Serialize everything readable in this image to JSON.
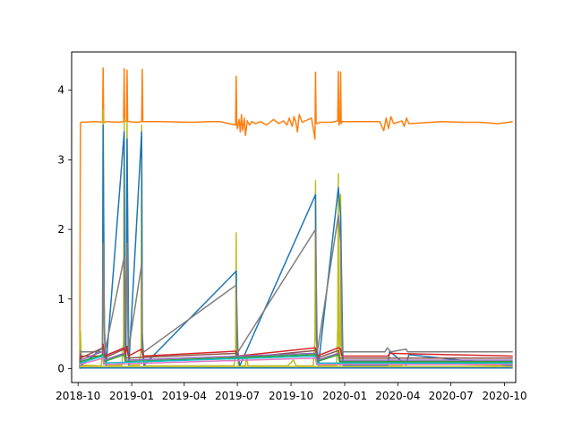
{
  "chart_data": {
    "type": "line",
    "title": "",
    "xlabel": "",
    "ylabel": "",
    "grid": false,
    "legend": "none",
    "x_range": [
      "2018-09-20",
      "2020-10-20"
    ],
    "ylim": [
      -0.2,
      4.55
    ],
    "x_ticks": [
      {
        "date": "2018-10-01",
        "label": "2018-10"
      },
      {
        "date": "2019-01-01",
        "label": "2019-01"
      },
      {
        "date": "2019-04-01",
        "label": "2019-04"
      },
      {
        "date": "2019-07-01",
        "label": "2019-07"
      },
      {
        "date": "2019-10-01",
        "label": "2019-10"
      },
      {
        "date": "2020-01-01",
        "label": "2020-01"
      },
      {
        "date": "2020-04-01",
        "label": "2020-04"
      },
      {
        "date": "2020-07-01",
        "label": "2020-07"
      },
      {
        "date": "2020-10-01",
        "label": "2020-10"
      }
    ],
    "y_ticks": [
      0,
      1,
      2,
      3,
      4
    ],
    "series": [
      {
        "color": "#ff7f0e",
        "x": [
          "2018-10-04",
          "2018-10-05",
          "2018-10-06",
          "2018-11-01",
          "2018-11-12",
          "2018-11-13",
          "2018-11-14",
          "2018-11-15",
          "2018-11-20",
          "2018-12-10",
          "2018-12-18",
          "2018-12-19",
          "2018-12-20",
          "2018-12-23",
          "2018-12-24",
          "2018-12-25",
          "2018-12-27",
          "2019-01-10",
          "2019-01-18",
          "2019-01-19",
          "2019-01-20",
          "2019-02-20",
          "2019-04-15",
          "2019-05-15",
          "2019-06-01",
          "2019-06-28",
          "2019-06-29",
          "2019-06-30",
          "2019-07-01",
          "2019-07-04",
          "2019-07-06",
          "2019-07-08",
          "2019-07-10",
          "2019-07-13",
          "2019-07-15",
          "2019-07-18",
          "2019-07-22",
          "2019-07-26",
          "2019-08-01",
          "2019-08-10",
          "2019-08-20",
          "2019-09-01",
          "2019-09-10",
          "2019-09-18",
          "2019-09-24",
          "2019-09-28",
          "2019-10-03",
          "2019-10-06",
          "2019-10-09",
          "2019-10-12",
          "2019-10-15",
          "2019-10-20",
          "2019-11-05",
          "2019-11-11",
          "2019-11-12",
          "2019-11-13",
          "2019-11-14",
          "2019-11-20",
          "2019-12-10",
          "2019-12-20",
          "2019-12-21",
          "2019-12-22",
          "2019-12-24",
          "2019-12-25",
          "2019-12-26",
          "2019-12-28",
          "2020-01-10",
          "2020-03-01",
          "2020-03-08",
          "2020-03-12",
          "2020-03-16",
          "2020-03-20",
          "2020-03-25",
          "2020-04-08",
          "2020-04-12",
          "2020-04-16",
          "2020-04-20",
          "2020-05-10",
          "2020-06-15",
          "2020-07-20",
          "2020-08-20",
          "2020-09-20",
          "2020-10-15"
        ],
        "y": [
          0.08,
          3.52,
          3.54,
          3.55,
          3.54,
          4.32,
          3.55,
          3.54,
          3.55,
          3.54,
          3.55,
          4.31,
          3.55,
          3.56,
          4.29,
          3.55,
          3.55,
          3.54,
          3.55,
          4.3,
          3.55,
          3.55,
          3.54,
          3.55,
          3.55,
          3.5,
          4.2,
          3.52,
          3.45,
          3.58,
          3.4,
          3.65,
          3.42,
          3.6,
          3.35,
          3.56,
          3.5,
          3.55,
          3.52,
          3.55,
          3.5,
          3.58,
          3.52,
          3.56,
          3.5,
          3.6,
          3.48,
          3.62,
          3.55,
          3.4,
          3.65,
          3.54,
          3.6,
          3.3,
          4.26,
          3.55,
          3.52,
          3.54,
          3.54,
          3.56,
          4.27,
          3.5,
          3.55,
          4.26,
          3.52,
          3.55,
          3.55,
          3.55,
          3.42,
          3.6,
          3.45,
          3.62,
          3.52,
          3.56,
          3.48,
          3.6,
          3.52,
          3.53,
          3.55,
          3.54,
          3.54,
          3.52,
          3.55
        ]
      },
      {
        "color": "#bcbd22",
        "x": [
          "2018-10-04",
          "2018-10-05",
          "2018-10-07",
          "2018-11-10",
          "2018-11-12",
          "2018-11-13",
          "2018-11-15",
          "2018-11-18",
          "2018-12-15",
          "2018-12-18",
          "2018-12-19",
          "2018-12-20",
          "2018-12-22",
          "2018-12-24",
          "2018-12-26",
          "2018-12-29",
          "2019-01-14",
          "2019-01-17",
          "2019-01-18",
          "2019-01-19",
          "2019-01-21",
          "2019-01-25",
          "2019-06-25",
          "2019-06-28",
          "2019-06-29",
          "2019-06-30",
          "2019-07-03",
          "2019-07-15",
          "2019-07-17",
          "2019-07-19",
          "2019-07-22",
          "2019-09-25",
          "2019-10-05",
          "2019-10-10",
          "2019-11-08",
          "2019-11-11",
          "2019-11-12",
          "2019-11-13",
          "2019-11-15",
          "2019-11-18",
          "2019-12-18",
          "2019-12-20",
          "2019-12-21",
          "2019-12-22",
          "2019-12-24",
          "2019-12-25",
          "2019-12-26",
          "2019-12-29",
          "2020-01-05",
          "2020-04-05",
          "2020-04-15",
          "2020-10-15"
        ],
        "y": [
          0.02,
          0.55,
          0.05,
          0.04,
          0.3,
          3.72,
          0.5,
          0.04,
          0.05,
          0.4,
          3.6,
          0.6,
          0.1,
          3.55,
          0.5,
          0.05,
          0.05,
          0.3,
          3.5,
          0.4,
          0.1,
          0.04,
          0.04,
          0.2,
          1.95,
          0.3,
          0.04,
          0.04,
          0.2,
          0.05,
          0.04,
          0.04,
          0.12,
          0.04,
          0.04,
          0.4,
          2.7,
          0.5,
          0.1,
          0.04,
          0.05,
          0.6,
          2.8,
          0.2,
          0.05,
          2.5,
          0.4,
          0.05,
          0.04,
          0.04,
          0.08,
          0.04
        ]
      },
      {
        "color": "#1f77b4",
        "x": [
          "2018-10-04",
          "2018-10-05",
          "2018-10-06",
          "2018-10-07",
          "2018-11-12",
          "2018-11-13",
          "2018-11-15",
          "2018-11-18",
          "2018-12-19",
          "2018-12-20",
          "2018-12-22",
          "2018-12-24",
          "2018-12-27",
          "2019-01-18",
          "2019-01-19",
          "2019-01-22",
          "2019-06-29",
          "2019-07-01",
          "2019-07-05",
          "2019-11-12",
          "2019-11-14",
          "2019-11-17",
          "2019-12-21",
          "2019-12-25",
          "2019-12-29",
          "2020-03-15",
          "2020-03-18",
          "2020-04-15",
          "2020-04-20",
          "2020-10-15"
        ],
        "y": [
          0.02,
          0.25,
          0.08,
          0.05,
          0.3,
          3.5,
          0.6,
          0.05,
          3.4,
          0.7,
          0.15,
          3.3,
          0.05,
          3.4,
          0.5,
          0.05,
          1.4,
          0.3,
          0.04,
          2.5,
          0.4,
          0.05,
          2.6,
          2.2,
          0.05,
          0.05,
          0.25,
          0.05,
          0.2,
          0.04
        ]
      },
      {
        "color": "#7f7f7f",
        "x": [
          "2018-10-04",
          "2018-10-05",
          "2018-11-12",
          "2018-11-13",
          "2018-11-16",
          "2018-12-19",
          "2018-12-20",
          "2018-12-24",
          "2018-12-26",
          "2019-01-18",
          "2019-01-19",
          "2019-01-22",
          "2019-06-29",
          "2019-07-02",
          "2019-11-12",
          "2019-11-15",
          "2019-12-21",
          "2019-12-25",
          "2019-12-28",
          "2020-03-10",
          "2020-03-14",
          "2020-03-20",
          "2020-04-15",
          "2020-04-18",
          "2020-10-15"
        ],
        "y": [
          0.02,
          0.24,
          0.24,
          1.8,
          0.24,
          1.6,
          0.3,
          1.8,
          0.24,
          1.5,
          0.3,
          0.24,
          1.2,
          0.24,
          2.0,
          0.24,
          2.2,
          1.8,
          0.24,
          0.24,
          0.3,
          0.24,
          0.28,
          0.24,
          0.24
        ]
      },
      {
        "color": "#d62728",
        "x": [
          "2018-10-04",
          "2018-10-05",
          "2018-11-12",
          "2018-11-13",
          "2018-11-15",
          "2018-12-19",
          "2018-12-21",
          "2018-12-24",
          "2018-12-26",
          "2019-01-18",
          "2019-01-20",
          "2019-06-29",
          "2019-07-01",
          "2019-11-12",
          "2019-11-14",
          "2019-12-21",
          "2019-12-25",
          "2019-12-27",
          "2020-03-15",
          "2020-03-18",
          "2020-10-15"
        ],
        "y": [
          0.02,
          0.18,
          0.18,
          0.35,
          0.18,
          0.3,
          0.18,
          0.32,
          0.18,
          0.28,
          0.18,
          0.25,
          0.18,
          0.3,
          0.18,
          0.3,
          0.28,
          0.18,
          0.18,
          0.22,
          0.18
        ]
      },
      {
        "color": "#8c564b",
        "x": [
          "2018-10-04",
          "2018-10-05",
          "2018-11-13",
          "2018-11-14",
          "2018-12-19",
          "2018-12-21",
          "2019-06-29",
          "2019-07-01",
          "2019-11-12",
          "2019-11-14",
          "2019-12-21",
          "2019-12-23",
          "2020-10-15"
        ],
        "y": [
          0.02,
          0.15,
          0.3,
          0.15,
          0.28,
          0.15,
          0.22,
          0.15,
          0.26,
          0.15,
          0.26,
          0.15,
          0.15
        ]
      },
      {
        "color": "#9467bd",
        "x": [
          "2018-10-04",
          "2018-10-05",
          "2018-11-13",
          "2018-11-14",
          "2018-12-19",
          "2018-12-21",
          "2019-11-12",
          "2019-11-14",
          "2019-12-21",
          "2019-12-23",
          "2020-10-15"
        ],
        "y": [
          0.01,
          0.12,
          0.25,
          0.12,
          0.22,
          0.12,
          0.22,
          0.12,
          0.22,
          0.12,
          0.12
        ]
      },
      {
        "color": "#2ca02c",
        "x": [
          "2018-10-04",
          "2018-10-05",
          "2018-11-13",
          "2018-11-14",
          "2018-12-19",
          "2018-12-21",
          "2019-11-12",
          "2019-11-14",
          "2019-12-21",
          "2019-12-23",
          "2020-10-15"
        ],
        "y": [
          0.01,
          0.1,
          0.2,
          0.1,
          0.2,
          0.1,
          0.2,
          0.1,
          0.2,
          0.1,
          0.1
        ]
      },
      {
        "color": "#17becf",
        "x": [
          "2018-10-04",
          "2018-10-05",
          "2018-11-13",
          "2018-11-14",
          "2019-11-12",
          "2019-11-14",
          "2020-10-15"
        ],
        "y": [
          0.01,
          0.08,
          0.18,
          0.08,
          0.18,
          0.08,
          0.08
        ]
      },
      {
        "color": "#e377c2",
        "x": [
          "2018-10-04",
          "2018-10-05",
          "2018-11-13",
          "2018-11-14",
          "2019-11-12",
          "2019-11-14",
          "2020-10-15"
        ],
        "y": [
          0.0,
          0.06,
          0.15,
          0.06,
          0.15,
          0.06,
          0.06
        ]
      },
      {
        "color": "#bcbd22",
        "x": [
          "2018-10-04",
          "2018-10-05",
          "2020-10-15"
        ],
        "y": [
          0.0,
          0.03,
          0.03
        ]
      },
      {
        "color": "#1f77b4",
        "x": [
          "2018-10-04",
          "2018-10-05",
          "2020-10-15"
        ],
        "y": [
          0.0,
          0.01,
          0.01
        ]
      }
    ]
  }
}
